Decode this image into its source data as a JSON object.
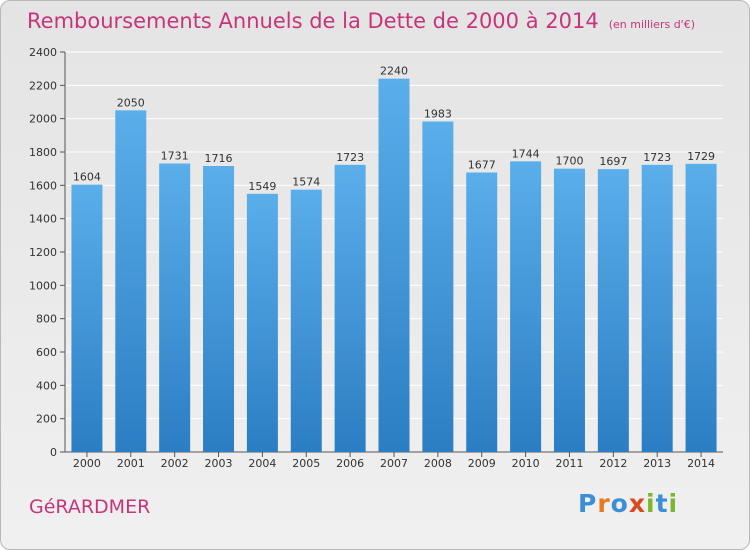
{
  "title": "Remboursements Annuels de la Dette de 2000 à 2014",
  "unit": "(en milliers d'€)",
  "commune": "GéRARDMER",
  "logo": {
    "text": "Proxiti",
    "letters": [
      "P",
      "r",
      "o",
      "x",
      "i",
      "t",
      "i"
    ],
    "colors": [
      "#3a8fd6",
      "#e57b1e",
      "#3a8fd6",
      "#d84a1b",
      "#7cb62e",
      "#3a8fd6",
      "#7cb62e"
    ]
  },
  "colors": {
    "title": "#c8347a",
    "bar_top": "#5aaeea",
    "bar_bottom": "#2c7ec4"
  },
  "chart_data": {
    "type": "bar",
    "title": "Remboursements Annuels de la Dette de 2000 à 2014",
    "categories": [
      "2000",
      "2001",
      "2002",
      "2003",
      "2004",
      "2005",
      "2006",
      "2007",
      "2008",
      "2009",
      "2010",
      "2011",
      "2012",
      "2013",
      "2014"
    ],
    "values": [
      1604,
      2050,
      1731,
      1716,
      1549,
      1574,
      1723,
      2240,
      1983,
      1677,
      1744,
      1700,
      1697,
      1723,
      1729
    ],
    "ylim": [
      0,
      2400
    ],
    "yticks": [
      0,
      200,
      400,
      600,
      800,
      1000,
      1200,
      1400,
      1600,
      1800,
      2000,
      2200,
      2400
    ],
    "grid": true
  }
}
